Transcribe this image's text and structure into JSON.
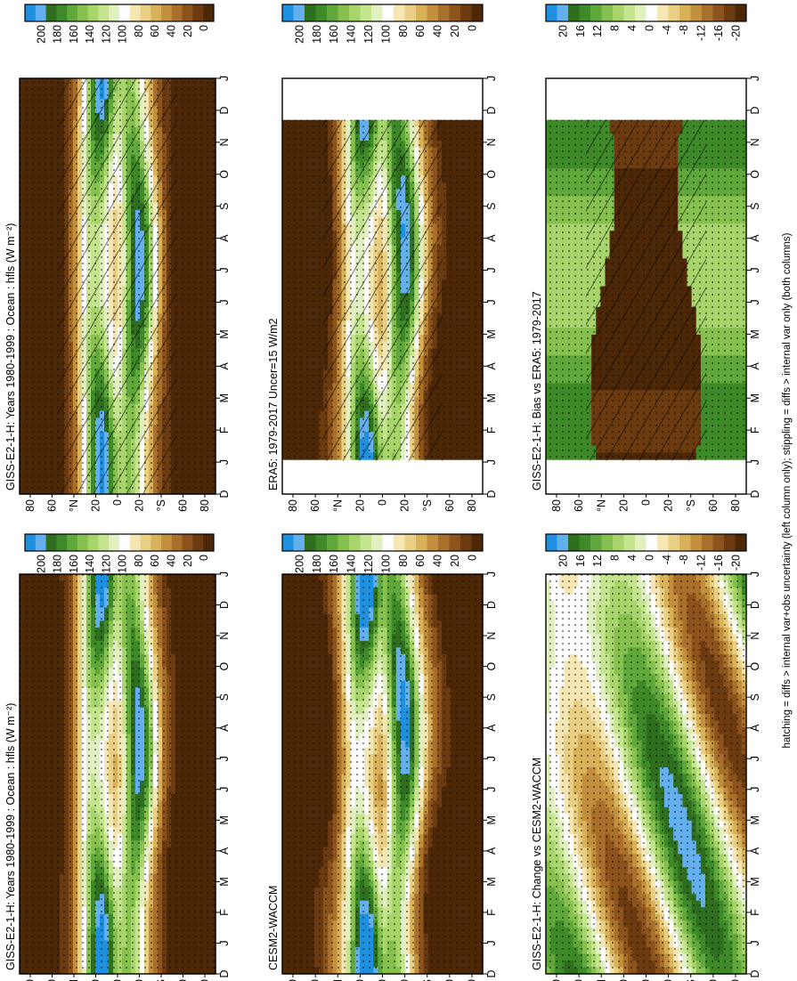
{
  "figure": {
    "footnote": "hatching = diffs > internal var+obs uncertainty (left column only); stippling = diffs > internal var only (both columns)"
  },
  "month_labels": [
    "D",
    "J",
    "F",
    "M",
    "A",
    "M",
    "J",
    "J",
    "A",
    "S",
    "O",
    "N",
    "D",
    "J"
  ],
  "lat_labels": [
    "80",
    "60",
    "°N",
    "20",
    "0",
    "20",
    "°S",
    "60",
    "80"
  ],
  "chart_data": [
    {
      "id": "p1",
      "type": "heatmap",
      "title": "GISS-E2-1-H: Years 1980-1999 : Ocean : hfls (W m⁻²)",
      "colorbar": {
        "ticks": [
          "200",
          "180",
          "160",
          "140",
          "120",
          "100",
          "80",
          "60",
          "40",
          "20",
          "0"
        ],
        "range": [
          0,
          210
        ]
      },
      "x": "month (Dec–Jan, 14 steps)",
      "y": "latitude (80N–80S)",
      "overlay": "hatching+stippling"
    },
    {
      "id": "p2",
      "type": "heatmap",
      "title": "GISS-E2-1-H: Years 1980-1999 : Ocean : hfls (W m⁻²)",
      "colorbar": {
        "ticks": [
          "200",
          "180",
          "160",
          "140",
          "120",
          "100",
          "80",
          "60",
          "40",
          "20",
          "0"
        ],
        "range": [
          0,
          210
        ]
      },
      "overlay": "stippling"
    },
    {
      "id": "p3",
      "type": "heatmap",
      "title": "ERA5: 1979-2017 Uncer=15 W/m2",
      "colorbar": {
        "ticks": [
          "200",
          "180",
          "160",
          "140",
          "120",
          "100",
          "80",
          "60",
          "40",
          "20",
          "0"
        ],
        "range": [
          0,
          210
        ]
      },
      "overlay": "hatching+stippling"
    },
    {
      "id": "p4",
      "type": "heatmap",
      "title": "CESM2-WACCM",
      "colorbar": {
        "ticks": [
          "200",
          "180",
          "160",
          "140",
          "120",
          "100",
          "80",
          "60",
          "40",
          "20",
          "0"
        ],
        "range": [
          0,
          210
        ]
      },
      "overlay": "stippling"
    },
    {
      "id": "p5",
      "type": "heatmap",
      "title": "GISS-E2-1-H: Bias vs ERA5: 1979-2017",
      "colorbar": {
        "ticks": [
          "20",
          "16",
          "12",
          "8",
          "4",
          "0",
          "-4",
          "-8",
          "-12",
          "-16",
          "-20"
        ],
        "range": [
          -22,
          22
        ]
      },
      "overlay": "hatching+stippling"
    },
    {
      "id": "p6",
      "type": "heatmap",
      "title": "GISS-E2-1-H: Change vs CESM2-WACCM",
      "colorbar": {
        "ticks": [
          "20",
          "16",
          "12",
          "8",
          "4",
          "0",
          "-4",
          "-8",
          "-12",
          "-16",
          "-20"
        ],
        "range": [
          -22,
          22
        ]
      },
      "overlay": "stippling"
    }
  ],
  "palette": {
    "main": [
      "#1e90e0",
      "#64b0ee",
      "#2e6e1e",
      "#3f8a28",
      "#60a83b",
      "#86c04e",
      "#a8d46c",
      "#c5e48e",
      "#e0f0c0",
      "#ffffff",
      "#f6e6b4",
      "#e9cf83",
      "#d8b158",
      "#c28f3c",
      "#a8702a",
      "#8c541c",
      "#6c3c10",
      "#4c2806"
    ],
    "diff": [
      "#1e90e0",
      "#64b0ee",
      "#2e6e1e",
      "#3f8a28",
      "#60a83b",
      "#86c04e",
      "#a8d46c",
      "#c5e48e",
      "#e0f0c0",
      "#ffffff",
      "#f6e6b4",
      "#e9cf83",
      "#d8b158",
      "#c28f3c",
      "#a8702a",
      "#8c541c",
      "#6c3c10",
      "#4c2806"
    ]
  }
}
